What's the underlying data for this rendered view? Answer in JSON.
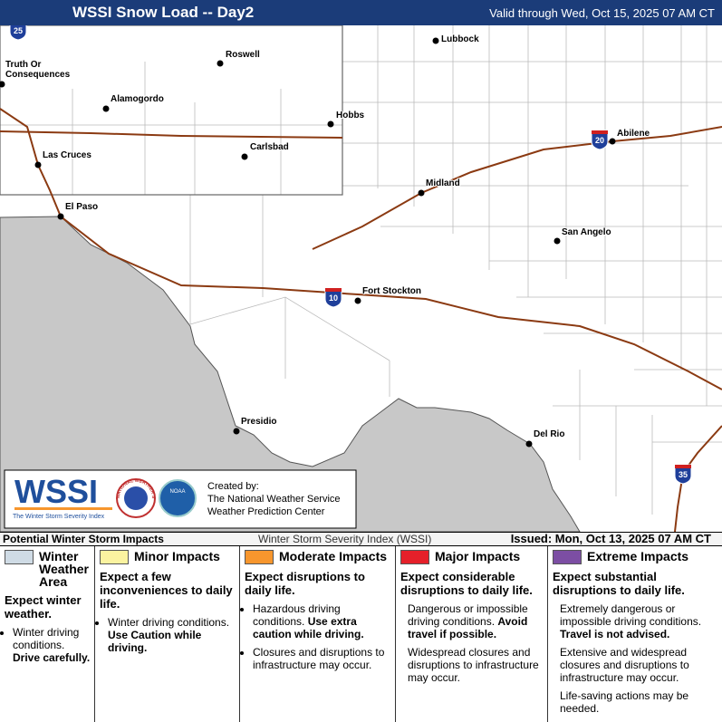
{
  "header": {
    "title": "WSSI Snow Load -- Day2",
    "valid": "Valid through Wed, Oct 15, 2025 07 AM CT"
  },
  "map": {
    "cities": [
      "Lubbock",
      "Roswell",
      "Truth Or Consequences",
      "Alamogordo",
      "Hobbs",
      "Carlsbad",
      "Las Cruces",
      "El Paso",
      "Abilene",
      "Midland",
      "San Angelo",
      "Fort Stockton",
      "Presidio",
      "Del Rio"
    ],
    "highways": [
      "25",
      "20",
      "10",
      "35"
    ]
  },
  "logo": {
    "acronym": "WSSI",
    "tagline": "The Winter Storm Severity Index",
    "nws_ring": "NATIONAL WEATHER SERVICE",
    "noaa": "NOAA",
    "credits": [
      "Created by:",
      "The National Weather Service",
      "Weather Prediction Center"
    ]
  },
  "legend_bar": {
    "left": "Potential Winter Storm Impacts",
    "center": "Winter Storm Severity Index (WSSI)",
    "right": "Issued: Mon, Oct 13, 2025 07 AM CT"
  },
  "legend": {
    "categories": [
      {
        "title": "Winter Weather Area",
        "color": "#cfdbe5",
        "summary": "Expect winter weather.",
        "bulleted": true,
        "items": [
          {
            "text": "Winter driving conditions.",
            "emphasis": "Drive carefully."
          }
        ]
      },
      {
        "title": "Minor Impacts",
        "color": "#fbf3a0",
        "summary": "Expect a few inconveniences to daily life.",
        "bulleted": true,
        "items": [
          {
            "text": "Winter driving conditions.",
            "emphasis": "Use Caution while driving."
          }
        ]
      },
      {
        "title": "Moderate Impacts",
        "color": "#f7962d",
        "summary": "Expect disruptions to daily life.",
        "bulleted": true,
        "items": [
          {
            "text": "Hazardous driving conditions.",
            "emphasis": "Use extra caution while driving."
          },
          {
            "text": "Closures and disruptions to infrastructure may occur."
          }
        ]
      },
      {
        "title": "Major Impacts",
        "color": "#e5202a",
        "summary": "Expect considerable disruptions to daily life.",
        "bulleted": false,
        "items": [
          {
            "text": "Dangerous or impossible driving conditions.",
            "emphasis": "Avoid travel if possible."
          },
          {
            "text": "Widespread closures and disruptions to infrastructure may occur."
          }
        ]
      },
      {
        "title": "Extreme Impacts",
        "color": "#7c4ea3",
        "summary": "Expect substantial disruptions to daily life.",
        "bulleted": false,
        "items": [
          {
            "text": "Extremely dangerous or impossible driving conditions.",
            "emphasis": "Travel is not advised."
          },
          {
            "text": "Extensive and widespread closures and disruptions to infrastructure may occur."
          },
          {
            "text": "Life-saving actions may be needed."
          }
        ]
      }
    ]
  }
}
